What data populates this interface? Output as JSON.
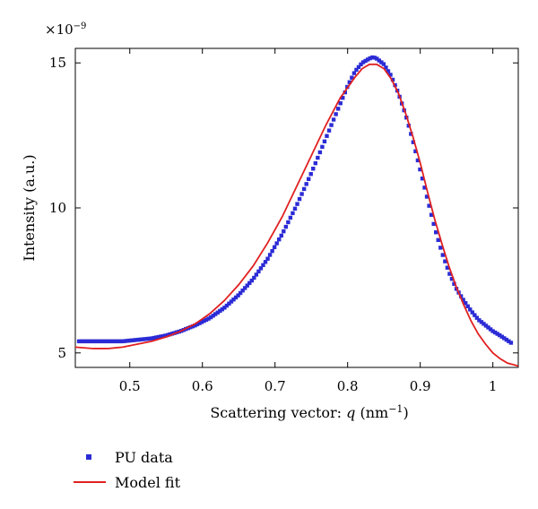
{
  "chart_data": {
    "type": "scatter",
    "xlabel_text": "Scattering vector: ",
    "xlabel_var": "q",
    "xlabel_unit": " (nm",
    "xlabel_exp": "−1",
    "xlabel_close": ")",
    "ylabel": "Intensity (a.u.)",
    "y_multiplier_base": "×10",
    "y_multiplier_exp": "−9",
    "xlim": [
      0.425,
      1.035
    ],
    "ylim": [
      4.5,
      15.5
    ],
    "xticks": [
      0.5,
      0.6,
      0.7,
      0.8,
      0.9,
      1.0
    ],
    "xtick_labels": [
      "0.5",
      "0.6",
      "0.7",
      "0.8",
      "0.9",
      "1"
    ],
    "yticks": [
      5,
      10,
      15
    ],
    "ytick_labels": [
      "5",
      "10",
      "15"
    ],
    "series": [
      {
        "name": "PU data",
        "style": "markers",
        "color": "#2b2bd6",
        "x": [
          0.43,
          0.45,
          0.47,
          0.49,
          0.51,
          0.53,
          0.55,
          0.57,
          0.59,
          0.61,
          0.63,
          0.65,
          0.67,
          0.69,
          0.71,
          0.73,
          0.75,
          0.77,
          0.79,
          0.8,
          0.81,
          0.82,
          0.83,
          0.835,
          0.84,
          0.85,
          0.86,
          0.87,
          0.88,
          0.89,
          0.9,
          0.91,
          0.92,
          0.93,
          0.94,
          0.95,
          0.96,
          0.97,
          0.98,
          0.99,
          1.0,
          1.01,
          1.025
        ],
        "y": [
          5.4,
          5.4,
          5.4,
          5.4,
          5.45,
          5.5,
          5.6,
          5.75,
          5.95,
          6.2,
          6.55,
          7.0,
          7.55,
          8.25,
          9.1,
          10.1,
          11.2,
          12.4,
          13.6,
          14.2,
          14.7,
          15.0,
          15.15,
          15.2,
          15.15,
          14.95,
          14.55,
          13.95,
          13.2,
          12.3,
          11.3,
          10.3,
          9.3,
          8.45,
          7.75,
          7.2,
          6.8,
          6.45,
          6.15,
          5.95,
          5.75,
          5.6,
          5.35
        ]
      },
      {
        "name": "Model fit",
        "style": "line",
        "color": "#e02020",
        "x": [
          0.425,
          0.45,
          0.47,
          0.49,
          0.51,
          0.53,
          0.55,
          0.57,
          0.59,
          0.61,
          0.63,
          0.65,
          0.67,
          0.69,
          0.71,
          0.73,
          0.75,
          0.77,
          0.79,
          0.81,
          0.82,
          0.83,
          0.84,
          0.85,
          0.86,
          0.87,
          0.88,
          0.89,
          0.9,
          0.91,
          0.92,
          0.93,
          0.94,
          0.95,
          0.96,
          0.97,
          0.98,
          0.99,
          1.0,
          1.01,
          1.02,
          1.035
        ],
        "y": [
          5.2,
          5.15,
          5.15,
          5.2,
          5.3,
          5.4,
          5.55,
          5.75,
          6.0,
          6.35,
          6.8,
          7.35,
          8.0,
          8.8,
          9.7,
          10.75,
          11.8,
          12.85,
          13.8,
          14.5,
          14.8,
          14.95,
          14.95,
          14.8,
          14.45,
          13.95,
          13.25,
          12.45,
          11.55,
          10.55,
          9.6,
          8.75,
          7.95,
          7.25,
          6.65,
          6.1,
          5.65,
          5.3,
          5.0,
          4.8,
          4.65,
          4.55
        ]
      }
    ]
  }
}
